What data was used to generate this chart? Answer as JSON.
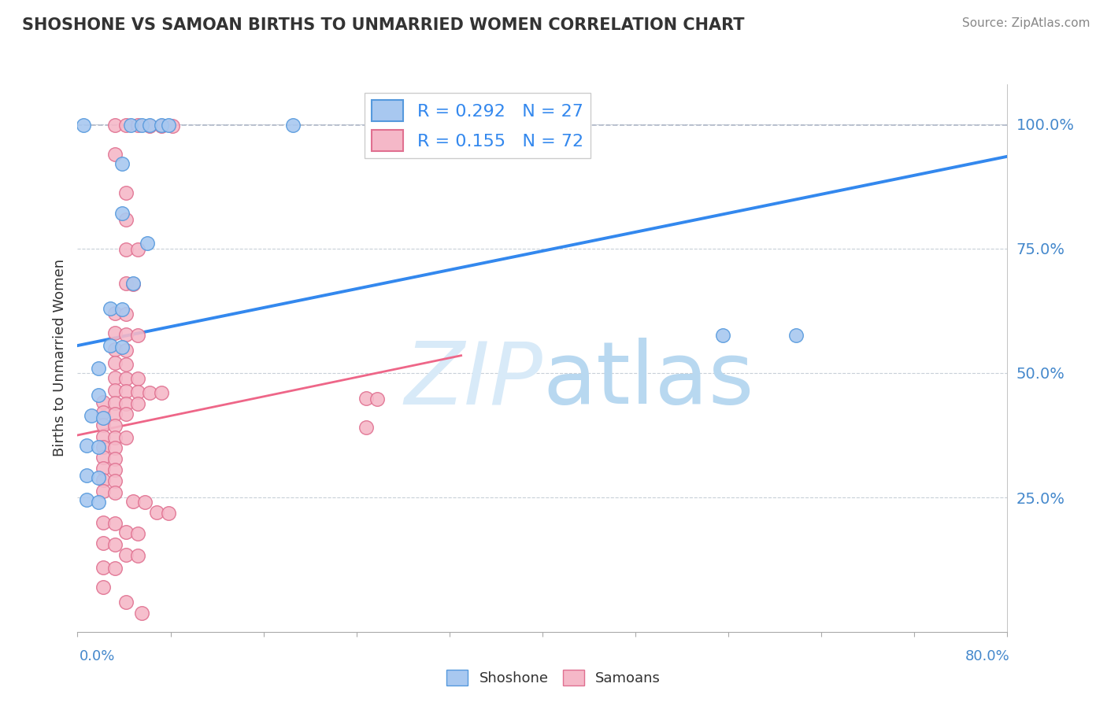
{
  "title": "SHOSHONE VS SAMOAN BIRTHS TO UNMARRIED WOMEN CORRELATION CHART",
  "source": "Source: ZipAtlas.com",
  "ylabel": "Births to Unmarried Women",
  "x_range": [
    0.0,
    0.8
  ],
  "y_range": [
    -0.02,
    1.08
  ],
  "y_ticks": [
    0.25,
    0.5,
    0.75,
    1.0
  ],
  "y_tick_labels": [
    "25.0%",
    "50.0%",
    "75.0%",
    "100.0%"
  ],
  "shoshone_R": 0.292,
  "shoshone_N": 27,
  "samoan_R": 0.155,
  "samoan_N": 72,
  "shoshone_color": "#a8c8f0",
  "shoshone_edge_color": "#5599dd",
  "samoan_color": "#f5b8c8",
  "samoan_edge_color": "#e07090",
  "shoshone_line_color": "#3388ee",
  "samoan_line_color": "#ee6688",
  "ref_line_color": "#b0b8c8",
  "watermark_color": "#d8eaf8",
  "legend_label1": "Shoshone",
  "legend_label2": "Samoans",
  "shoshone_line": [
    0.0,
    0.8,
    0.555,
    0.935
  ],
  "samoan_line": [
    0.0,
    0.33,
    0.375,
    0.535
  ],
  "ref_line": [
    0.0,
    0.8,
    0.998,
    0.998
  ],
  "shoshone_points": [
    [
      0.005,
      0.998
    ],
    [
      0.046,
      0.998
    ],
    [
      0.055,
      0.998
    ],
    [
      0.062,
      0.998
    ],
    [
      0.072,
      0.998
    ],
    [
      0.078,
      0.998
    ],
    [
      0.185,
      0.998
    ],
    [
      0.038,
      0.92
    ],
    [
      0.038,
      0.82
    ],
    [
      0.06,
      0.76
    ],
    [
      0.048,
      0.68
    ],
    [
      0.028,
      0.63
    ],
    [
      0.038,
      0.628
    ],
    [
      0.555,
      0.575
    ],
    [
      0.618,
      0.575
    ],
    [
      0.028,
      0.555
    ],
    [
      0.038,
      0.552
    ],
    [
      0.018,
      0.51
    ],
    [
      0.018,
      0.455
    ],
    [
      0.012,
      0.415
    ],
    [
      0.022,
      0.41
    ],
    [
      0.008,
      0.355
    ],
    [
      0.018,
      0.352
    ],
    [
      0.008,
      0.295
    ],
    [
      0.018,
      0.29
    ],
    [
      0.008,
      0.245
    ],
    [
      0.018,
      0.24
    ]
  ],
  "samoan_points": [
    [
      0.032,
      0.998
    ],
    [
      0.042,
      0.998
    ],
    [
      0.052,
      0.998
    ],
    [
      0.062,
      0.997
    ],
    [
      0.072,
      0.997
    ],
    [
      0.082,
      0.997
    ],
    [
      0.032,
      0.94
    ],
    [
      0.042,
      0.862
    ],
    [
      0.042,
      0.808
    ],
    [
      0.042,
      0.748
    ],
    [
      0.052,
      0.748
    ],
    [
      0.042,
      0.68
    ],
    [
      0.048,
      0.678
    ],
    [
      0.032,
      0.62
    ],
    [
      0.042,
      0.618
    ],
    [
      0.032,
      0.58
    ],
    [
      0.042,
      0.578
    ],
    [
      0.052,
      0.576
    ],
    [
      0.032,
      0.548
    ],
    [
      0.042,
      0.546
    ],
    [
      0.032,
      0.52
    ],
    [
      0.042,
      0.518
    ],
    [
      0.032,
      0.49
    ],
    [
      0.042,
      0.488
    ],
    [
      0.052,
      0.488
    ],
    [
      0.032,
      0.465
    ],
    [
      0.042,
      0.463
    ],
    [
      0.052,
      0.462
    ],
    [
      0.062,
      0.46
    ],
    [
      0.072,
      0.46
    ],
    [
      0.022,
      0.442
    ],
    [
      0.032,
      0.44
    ],
    [
      0.042,
      0.438
    ],
    [
      0.052,
      0.438
    ],
    [
      0.022,
      0.42
    ],
    [
      0.032,
      0.418
    ],
    [
      0.042,
      0.417
    ],
    [
      0.248,
      0.45
    ],
    [
      0.258,
      0.448
    ],
    [
      0.248,
      0.39
    ],
    [
      0.022,
      0.395
    ],
    [
      0.032,
      0.394
    ],
    [
      0.022,
      0.372
    ],
    [
      0.032,
      0.37
    ],
    [
      0.042,
      0.37
    ],
    [
      0.022,
      0.352
    ],
    [
      0.032,
      0.35
    ],
    [
      0.022,
      0.33
    ],
    [
      0.032,
      0.328
    ],
    [
      0.022,
      0.308
    ],
    [
      0.032,
      0.305
    ],
    [
      0.022,
      0.285
    ],
    [
      0.032,
      0.283
    ],
    [
      0.022,
      0.262
    ],
    [
      0.032,
      0.26
    ],
    [
      0.048,
      0.242
    ],
    [
      0.058,
      0.24
    ],
    [
      0.068,
      0.22
    ],
    [
      0.078,
      0.218
    ],
    [
      0.022,
      0.2
    ],
    [
      0.032,
      0.198
    ],
    [
      0.042,
      0.18
    ],
    [
      0.052,
      0.178
    ],
    [
      0.022,
      0.158
    ],
    [
      0.032,
      0.155
    ],
    [
      0.042,
      0.135
    ],
    [
      0.052,
      0.133
    ],
    [
      0.022,
      0.11
    ],
    [
      0.032,
      0.108
    ],
    [
      0.022,
      0.07
    ],
    [
      0.042,
      0.04
    ],
    [
      0.055,
      0.018
    ]
  ]
}
